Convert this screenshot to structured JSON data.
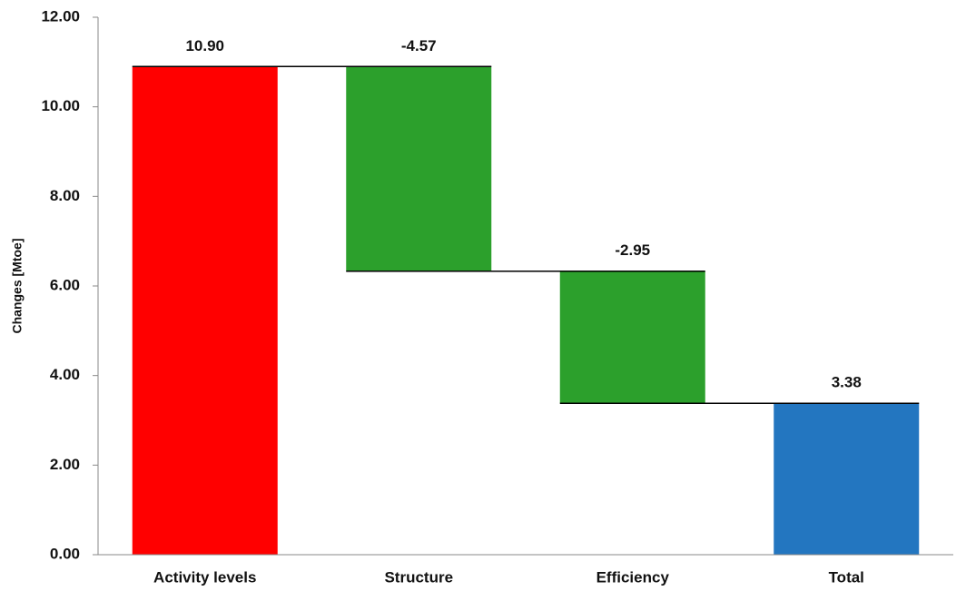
{
  "chart_data": {
    "type": "waterfall",
    "ylabel": "Changes [Mtoe]",
    "categories": [
      "Activity levels",
      "Structure",
      "Efficiency",
      "Total"
    ],
    "values": [
      10.9,
      -4.57,
      -2.95,
      3.38
    ],
    "value_labels": [
      "10.90",
      "-4.57",
      "-2.95",
      "3.38"
    ],
    "is_total": [
      false,
      false,
      false,
      true
    ],
    "colors": [
      "#ff0000",
      "#2ca02c",
      "#2ca02c",
      "#2376c0"
    ],
    "ylim": [
      0,
      12
    ],
    "yticks": [
      {
        "value": 0,
        "label": "0.00"
      },
      {
        "value": 2,
        "label": "2.00"
      },
      {
        "value": 4,
        "label": "4.00"
      },
      {
        "value": 6,
        "label": "6.00"
      },
      {
        "value": 8,
        "label": "8.00"
      },
      {
        "value": 10,
        "label": "10.00"
      },
      {
        "value": 12,
        "label": "12.00"
      }
    ],
    "grid": false
  }
}
